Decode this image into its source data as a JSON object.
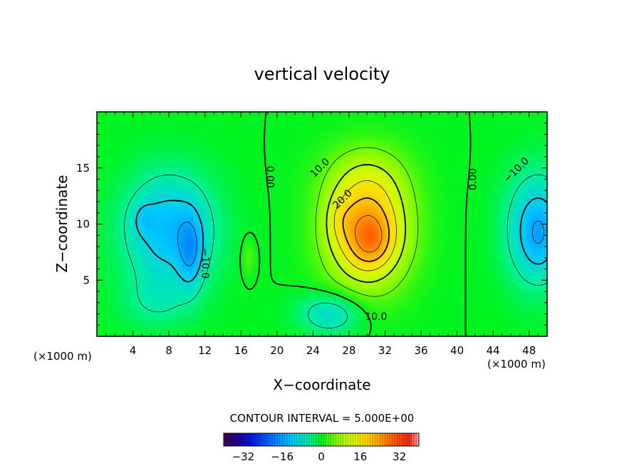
{
  "chart_data": {
    "type": "heatmap",
    "title": "vertical velocity",
    "xlabel": "X−coordinate",
    "ylabel": "Z−coordinate",
    "x_unit_label": "(×1000 m)",
    "x_unit_label_right": "(×1000 m)",
    "xlim": [
      0,
      50
    ],
    "ylim": [
      0,
      20
    ],
    "x_ticks": [
      4,
      8,
      12,
      16,
      20,
      24,
      28,
      32,
      36,
      40,
      44,
      48
    ],
    "y_ticks": [
      5,
      10,
      15
    ],
    "contour_interval_text": "CONTOUR INTERVAL = 5.000E+00",
    "contour_interval": 5,
    "colorbar": {
      "range": [
        -40,
        40
      ],
      "tick_values": [
        -32,
        -16,
        0,
        16,
        32
      ],
      "tick_labels": [
        "−32",
        "−16",
        "0",
        "16",
        "32"
      ]
    },
    "contour_labels": [
      {
        "text": "0.00",
        "x": 19.2,
        "y": 14.2,
        "rotation": 90
      },
      {
        "text": "10.0",
        "x": 24.8,
        "y": 15.0,
        "rotation": -45
      },
      {
        "text": "20.0",
        "x": 27.3,
        "y": 12.2,
        "rotation": -45
      },
      {
        "text": "10.0",
        "x": 31.0,
        "y": 1.7,
        "rotation": 0
      },
      {
        "text": "0.00",
        "x": 41.8,
        "y": 14.0,
        "rotation": -90
      },
      {
        "text": "−10.0",
        "x": 46.6,
        "y": 14.8,
        "rotation": -45
      },
      {
        "text": "−10.0",
        "x": 12.0,
        "y": 6.5,
        "rotation": 90
      }
    ],
    "features": [
      {
        "x": 8.0,
        "y": 9.5,
        "sx": 5.0,
        "sy": 5.0,
        "amp": -13
      },
      {
        "x": 10.4,
        "y": 7.5,
        "sx": 1.4,
        "sy": 3.2,
        "amp": -9
      },
      {
        "x": 5.2,
        "y": 10.4,
        "sx": 1.2,
        "sy": 1.4,
        "amp": -4
      },
      {
        "x": 6.5,
        "y": 3.0,
        "sx": 4.0,
        "sy": 2.5,
        "amp": -4
      },
      {
        "x": 30.0,
        "y": 9.5,
        "sx": 4.5,
        "sy": 5.0,
        "amp": 24
      },
      {
        "x": 30.5,
        "y": 8.5,
        "sx": 2.0,
        "sy": 2.0,
        "amp": 6
      },
      {
        "x": 27.0,
        "y": 10.5,
        "sx": 1.5,
        "sy": 2.0,
        "amp": 3
      },
      {
        "x": 30.0,
        "y": 14.5,
        "sx": 5.0,
        "sy": 3.0,
        "amp": 4
      },
      {
        "x": 26.0,
        "y": 2.0,
        "sx": 3.5,
        "sy": 1.8,
        "amp": -9
      },
      {
        "x": 16.8,
        "y": 7.0,
        "sx": 0.7,
        "sy": 1.6,
        "amp": 4
      },
      {
        "x": 49.0,
        "y": 9.5,
        "sx": 3.5,
        "sy": 5.0,
        "amp": -13
      },
      {
        "x": 49.0,
        "y": 9.0,
        "sx": 1.5,
        "sy": 2.5,
        "amp": -3
      }
    ],
    "grid": false,
    "legend": "colorbar at bottom"
  }
}
